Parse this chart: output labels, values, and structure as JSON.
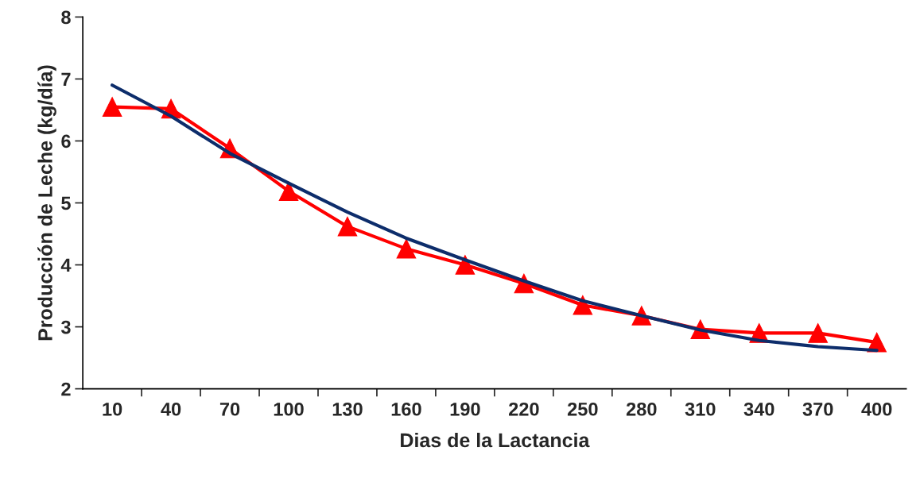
{
  "chart_data": {
    "type": "line",
    "xlabel": "Dias de la Lactancia",
    "ylabel": "Producción de Leche (kg/día)",
    "categories": [
      "10",
      "40",
      "70",
      "100",
      "130",
      "160",
      "190",
      "220",
      "250",
      "280",
      "310",
      "340",
      "370",
      "400"
    ],
    "series": [
      {
        "color": "#ff0000",
        "marker": "triangle",
        "values": [
          6.55,
          6.52,
          5.88,
          5.19,
          4.62,
          4.26,
          4.0,
          3.7,
          3.35,
          3.18,
          2.96,
          2.9,
          2.9,
          2.75
        ]
      },
      {
        "color": "#0d2d6b",
        "marker": "none",
        "values": [
          6.9,
          6.4,
          5.8,
          5.32,
          4.85,
          4.43,
          4.08,
          3.74,
          3.42,
          3.18,
          2.95,
          2.78,
          2.68,
          2.62
        ]
      }
    ],
    "ylim": [
      2,
      8
    ],
    "yticks": [
      2,
      3,
      4,
      5,
      6,
      7,
      8
    ],
    "grid": false,
    "legend": false
  }
}
